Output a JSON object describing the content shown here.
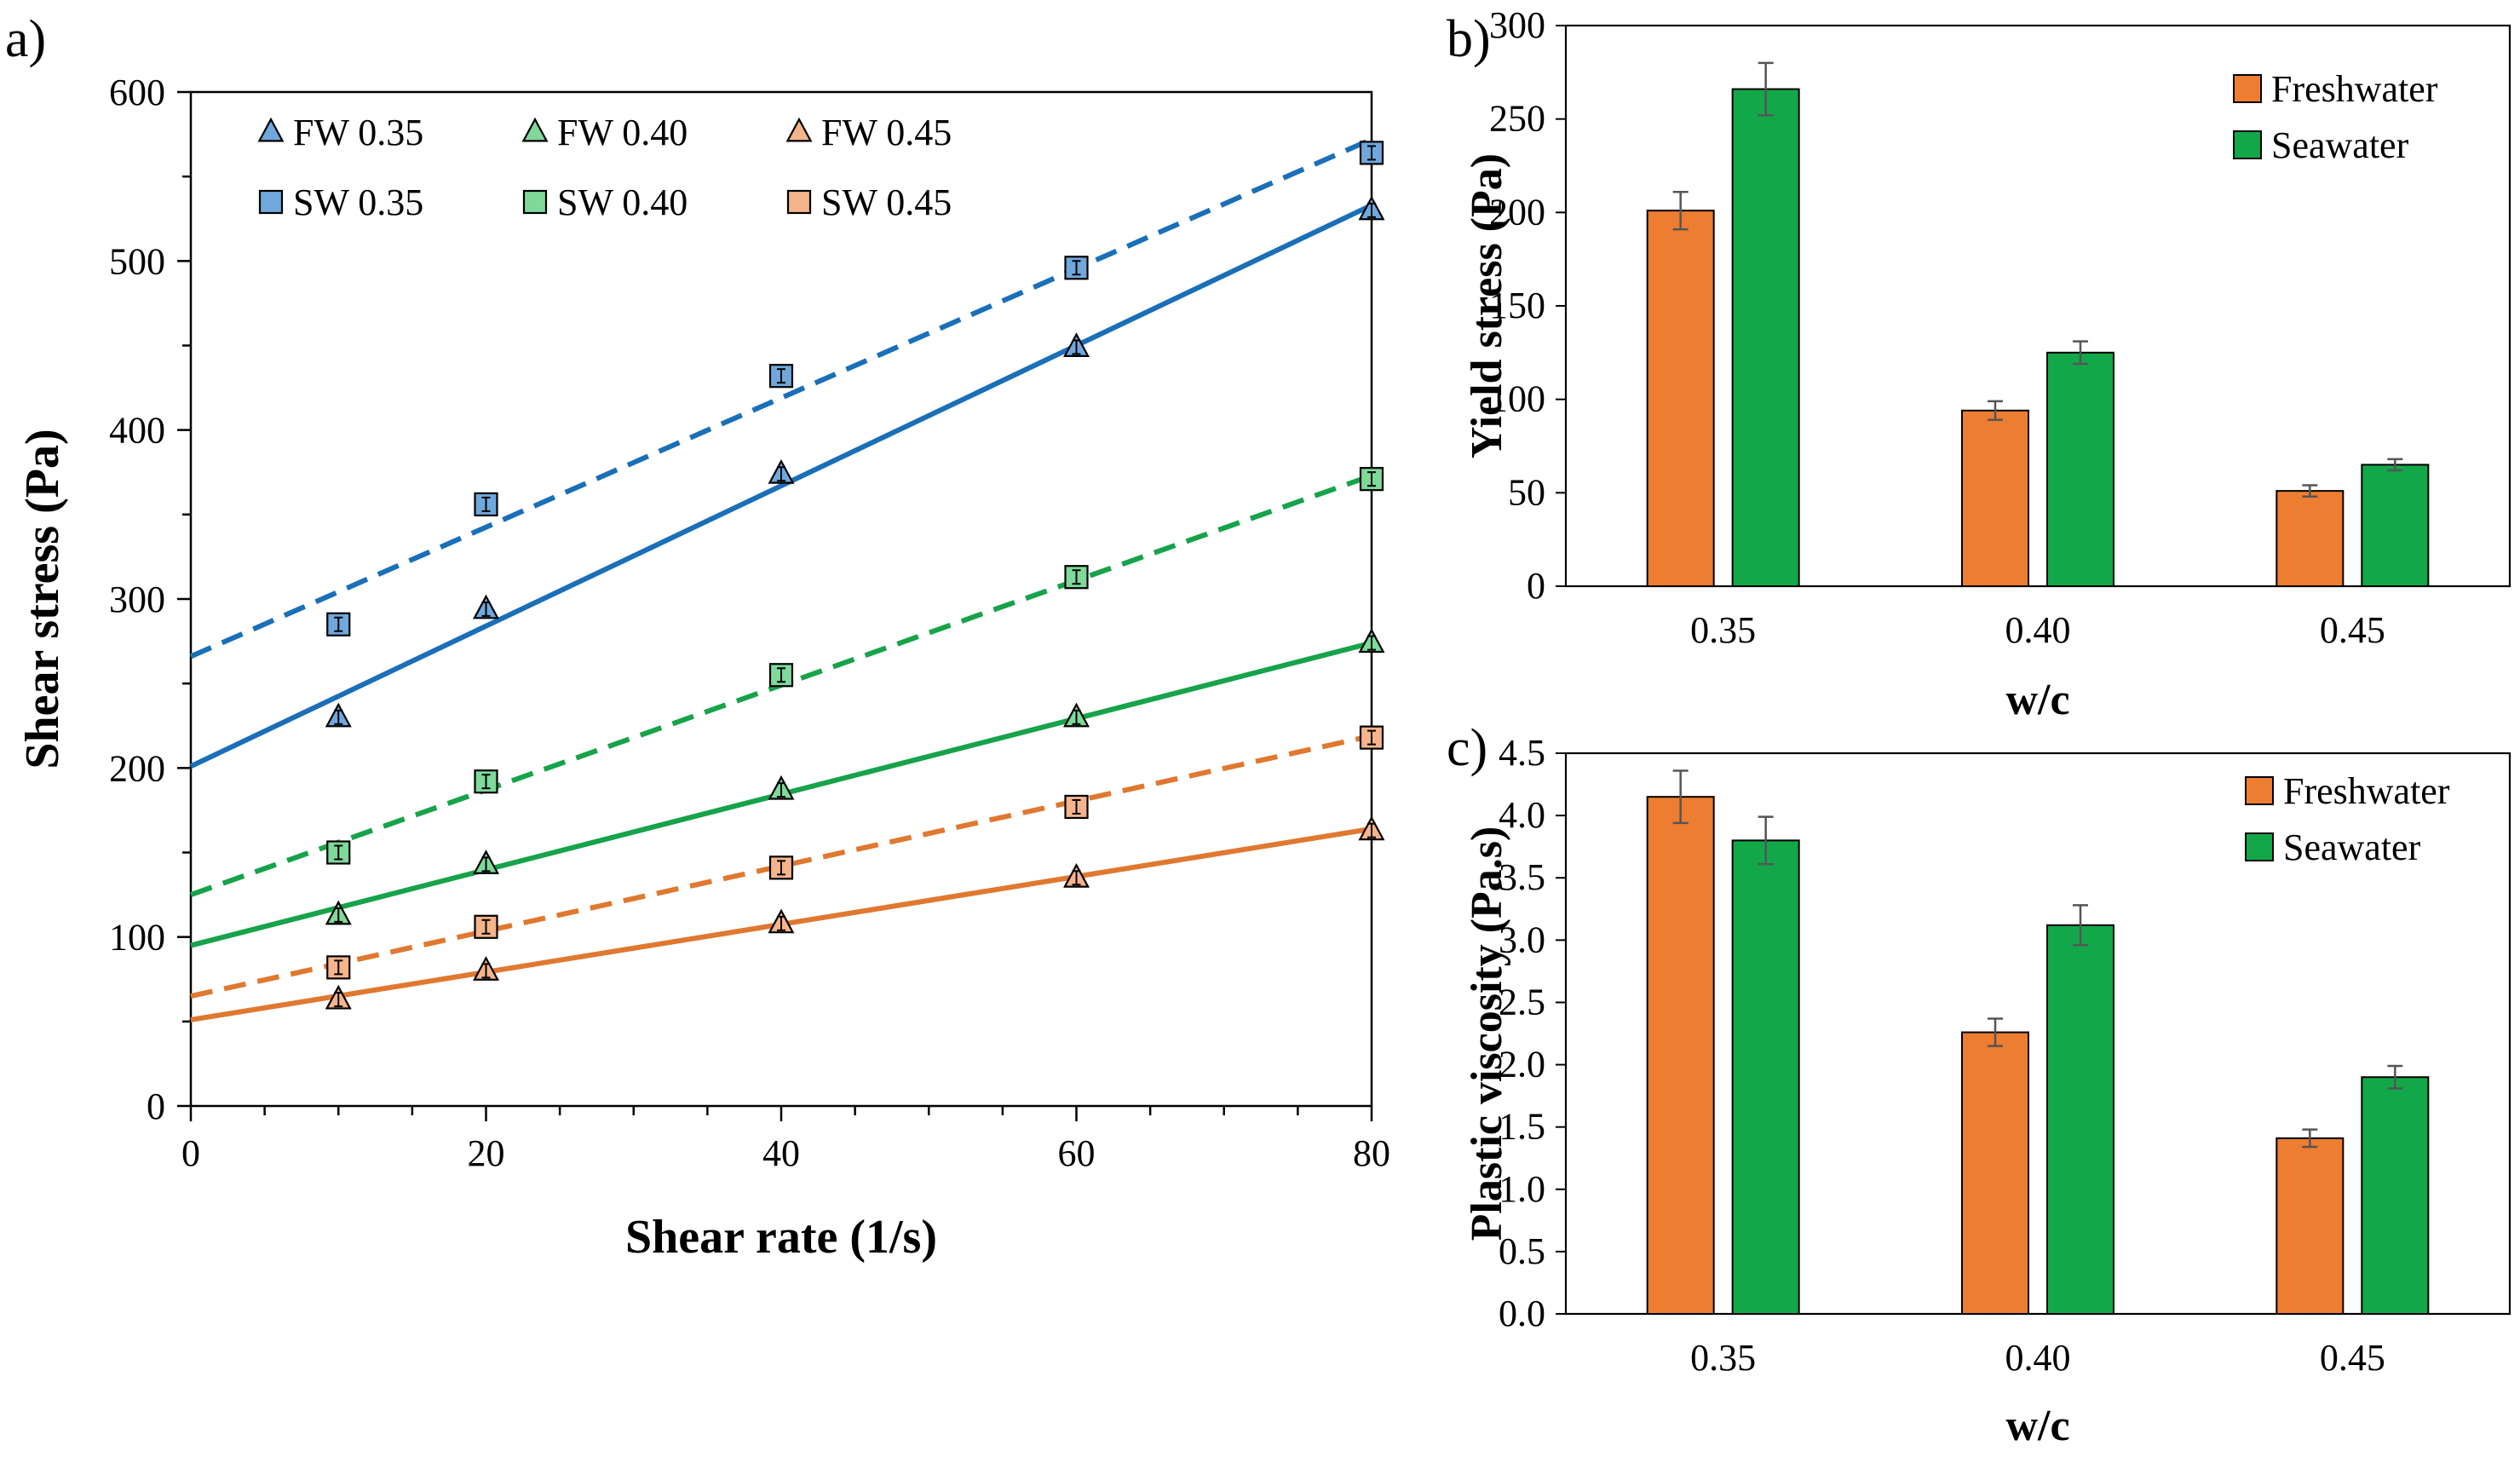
{
  "chart_data": [
    {
      "panel": "a)",
      "type": "scatter",
      "xlabel": "Shear rate (1/s)",
      "ylabel": "Shear stress (Pa)",
      "xlim": [
        0,
        80
      ],
      "ylim": [
        0,
        600
      ],
      "xticks": [
        "0",
        "20",
        "40",
        "60",
        "80"
      ],
      "yticks": [
        "0",
        "100",
        "200",
        "300",
        "400",
        "500",
        "600"
      ],
      "grid": false,
      "legend_position": "top-left",
      "x": [
        10,
        20,
        40,
        60,
        80
      ],
      "series": [
        {
          "name": "FW 0.35",
          "marker": "triangle",
          "color": "#6FA8DC",
          "line_color": "#1A6FB9",
          "dash": false,
          "values": [
            230,
            294,
            374,
            449,
            530
          ],
          "fit_intercept": 201,
          "fit_end": 533
        },
        {
          "name": "FW 0.40",
          "marker": "triangle",
          "color": "#7ED99A",
          "line_color": "#16A34A",
          "dash": false,
          "values": [
            113,
            143,
            187,
            230,
            274
          ],
          "fit_intercept": 95,
          "fit_end": 274
        },
        {
          "name": "FW 0.45",
          "marker": "triangle",
          "color": "#F6B48B",
          "line_color": "#E07830",
          "dash": false,
          "values": [
            63,
            80,
            108,
            135,
            163
          ],
          "fit_intercept": 51,
          "fit_end": 164
        },
        {
          "name": "SW 0.35",
          "marker": "square",
          "color": "#6FA8DC",
          "line_color": "#1A6FB9",
          "dash": true,
          "values": [
            285,
            356,
            432,
            496,
            564
          ],
          "fit_intercept": 266,
          "fit_end": 572
        },
        {
          "name": "SW 0.40",
          "marker": "square",
          "color": "#7ED99A",
          "line_color": "#16A34A",
          "dash": true,
          "values": [
            150,
            192,
            255,
            313,
            371
          ],
          "fit_intercept": 125,
          "fit_end": 373
        },
        {
          "name": "SW 0.45",
          "marker": "square",
          "color": "#F6B48B",
          "line_color": "#E07830",
          "dash": true,
          "values": [
            82,
            106,
            141,
            177,
            218
          ],
          "fit_intercept": 65,
          "fit_end": 219
        }
      ]
    },
    {
      "panel": "b)",
      "type": "bar",
      "xlabel": "w/c",
      "ylabel": "Yield stress (Pa)",
      "categories": [
        "0.35",
        "0.40",
        "0.45"
      ],
      "ylim": [
        0,
        300
      ],
      "yticks": [
        "0",
        "50",
        "100",
        "150",
        "200",
        "250",
        "300"
      ],
      "legend_position": "top-right",
      "series": [
        {
          "name": "Freshwater",
          "color": "#ED7D31",
          "values": [
            201,
            94,
            51
          ],
          "errors": [
            10,
            5,
            3
          ]
        },
        {
          "name": "Seawater",
          "color": "#12A84A",
          "values": [
            266,
            125,
            65
          ],
          "errors": [
            14,
            6,
            3
          ]
        }
      ]
    },
    {
      "panel": "c)",
      "type": "bar",
      "xlabel": "w/c",
      "ylabel": "Plastic viscosity (Pa.s)",
      "categories": [
        "0.35",
        "0.40",
        "0.45"
      ],
      "ylim": [
        0,
        4.5
      ],
      "yticks": [
        "0.0",
        "0.5",
        "1.0",
        "1.5",
        "2.0",
        "2.5",
        "3.0",
        "3.5",
        "4.0",
        "4.5"
      ],
      "legend_position": "top-right",
      "series": [
        {
          "name": "Freshwater",
          "color": "#ED7D31",
          "values": [
            4.15,
            2.26,
            1.41
          ],
          "errors": [
            0.21,
            0.11,
            0.07
          ]
        },
        {
          "name": "Seawater",
          "color": "#12A84A",
          "values": [
            3.8,
            3.12,
            1.9
          ],
          "errors": [
            0.19,
            0.16,
            0.09
          ]
        }
      ]
    }
  ]
}
